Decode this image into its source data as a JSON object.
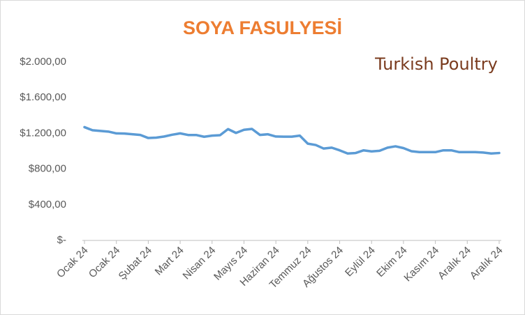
{
  "chart_data": {
    "type": "line",
    "title": "SOYA FASULYESİ",
    "logo": "Turkish Poultry",
    "categories": [
      "Ocak 24",
      null,
      null,
      null,
      "Ocak 24",
      null,
      null,
      null,
      "Şubat 24",
      null,
      null,
      null,
      "Mart 24",
      null,
      null,
      null,
      "Nisan 24",
      null,
      null,
      null,
      "Mayıs 24",
      null,
      null,
      null,
      "Haziran 24",
      null,
      null,
      null,
      "Temmuz 24",
      null,
      null,
      null,
      "Ağustos 24",
      null,
      null,
      null,
      "Eylül 24",
      null,
      null,
      null,
      "Ekim 24",
      null,
      null,
      null,
      "Kasım 24",
      null,
      null,
      null,
      "Aralık 24",
      null,
      null,
      null,
      "Aralık 24"
    ],
    "series": [
      {
        "color": "#5b9bd5",
        "values": [
          1270,
          1235,
          1228,
          1220,
          1200,
          1198,
          1190,
          1183,
          1148,
          1152,
          1165,
          1185,
          1200,
          1182,
          1182,
          1162,
          1175,
          1180,
          1248,
          1205,
          1240,
          1250,
          1183,
          1190,
          1165,
          1163,
          1163,
          1175,
          1085,
          1070,
          1030,
          1040,
          1010,
          975,
          980,
          1010,
          998,
          1005,
          1040,
          1055,
          1035,
          1000,
          990,
          990,
          990,
          1010,
          1010,
          990,
          990,
          990,
          985,
          975,
          980
        ]
      }
    ],
    "ylim": [
      0,
      2000
    ],
    "yticks": [
      {
        "value": 0,
        "label": "$-"
      },
      {
        "value": 400,
        "label": "$400,00"
      },
      {
        "value": 800,
        "label": "$800,00"
      },
      {
        "value": 1200,
        "label": "$1.200,00"
      },
      {
        "value": 1600,
        "label": "$1.600,00"
      },
      {
        "value": 2000,
        "label": "$2.000,00"
      }
    ],
    "grid": false
  }
}
